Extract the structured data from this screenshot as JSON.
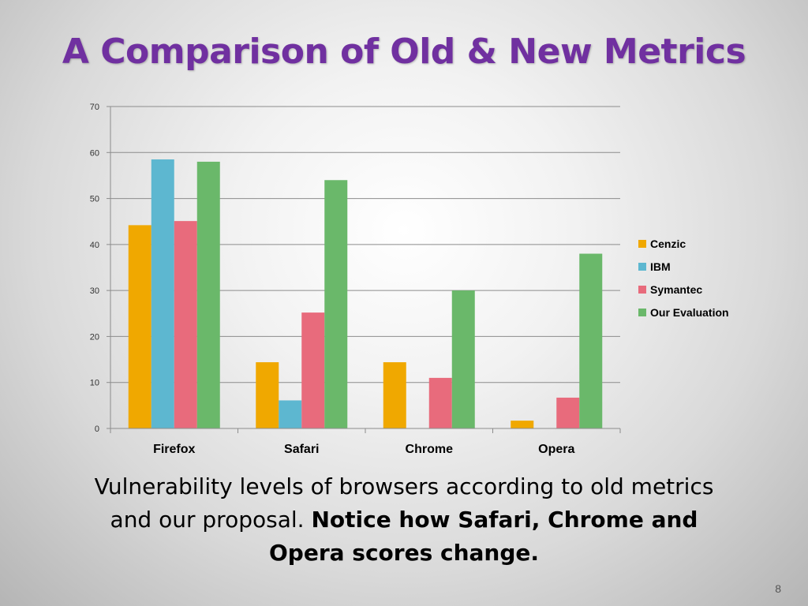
{
  "slide": {
    "title": "A Comparison of Old & New Metrics",
    "caption_plain": "Vulnerability levels of browsers according to old metrics and our proposal. ",
    "caption_bold": "Notice how Safari, Chrome and Opera scores change.",
    "page_number": "8"
  },
  "chart_data": {
    "type": "bar",
    "title": "",
    "xlabel": "",
    "ylabel": "",
    "categories": [
      "Firefox",
      "Safari",
      "Chrome",
      "Opera"
    ],
    "series": [
      {
        "name": "Cenzic",
        "color": "#f0a800",
        "values": [
          44.2,
          14.4,
          14.4,
          1.7
        ]
      },
      {
        "name": "IBM",
        "color": "#5db7d0",
        "values": [
          58.5,
          6.1,
          0,
          0
        ]
      },
      {
        "name": "Symantec",
        "color": "#e86b7c",
        "values": [
          45.1,
          25.2,
          11.0,
          6.7
        ]
      },
      {
        "name": "Our Evaluation",
        "color": "#6ab86a",
        "values": [
          58,
          54,
          30,
          38
        ]
      }
    ],
    "ylim": [
      0,
      70
    ],
    "yticks": [
      0,
      10,
      20,
      30,
      40,
      50,
      60,
      70
    ],
    "grid": true,
    "legend": "right"
  }
}
